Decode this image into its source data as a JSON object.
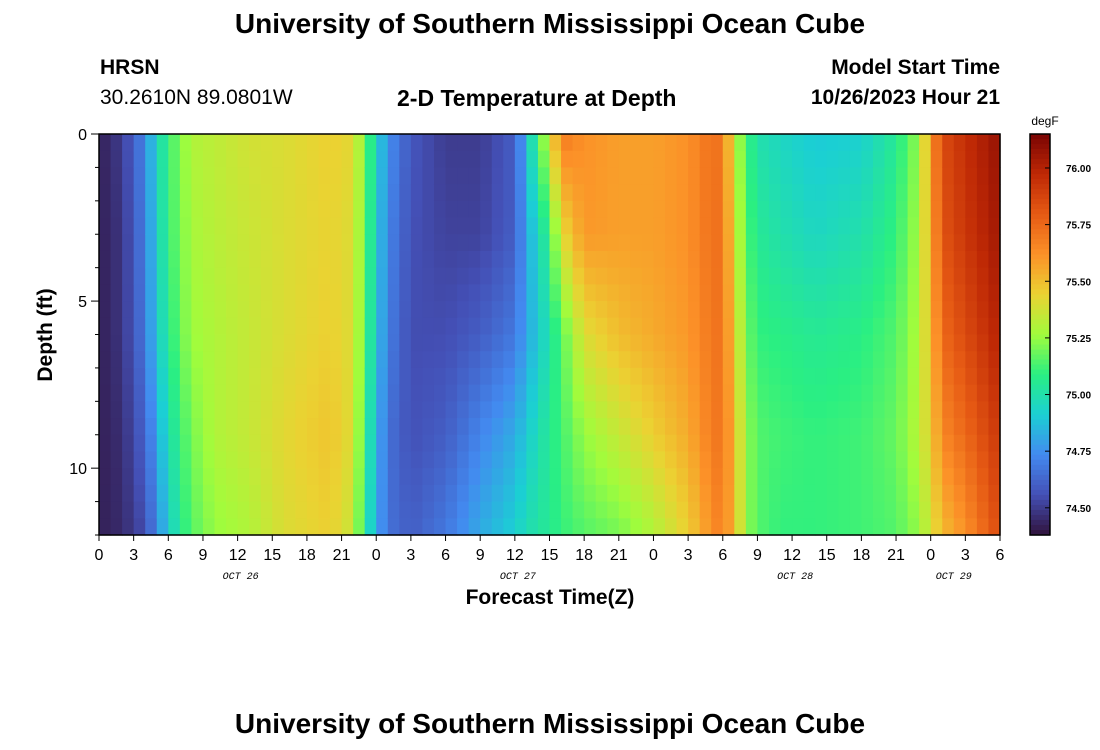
{
  "page": {
    "title": "University of Southern Mississippi Ocean Cube",
    "title_repeat": "University of Southern Mississippi Ocean Cube",
    "station_name": "HRSN",
    "station_coords": "30.2610N  89.0801W",
    "subtitle": "2-D Temperature at Depth",
    "model_start_label": "Model Start Time",
    "model_start_value": "10/26/2023 Hour 21"
  },
  "chart_data": {
    "type": "heatmap",
    "title": "2-D Temperature at Depth",
    "xlabel": "Forecast Time(Z)",
    "ylabel": "Depth (ft)",
    "x_range_hours": [
      0,
      78
    ],
    "y_range_ft": [
      0,
      12
    ],
    "y_ticks": [
      "0",
      "5",
      "10"
    ],
    "x_ticks": [
      "0",
      "3",
      "6",
      "9",
      "12",
      "15",
      "18",
      "21",
      "0",
      "3",
      "6",
      "9",
      "12",
      "15",
      "18",
      "21",
      "0",
      "3",
      "6",
      "9",
      "12",
      "15",
      "18",
      "21",
      "0",
      "3",
      "6"
    ],
    "date_labels": [
      "OCT 26",
      "OCT 27",
      "OCT 28",
      "OCT 29"
    ],
    "colorbar": {
      "unit": "degF",
      "min": 74.38,
      "max": 76.15,
      "ticks": [
        "74.50",
        "74.75",
        "75.00",
        "75.25",
        "75.50",
        "75.75",
        "76.00"
      ]
    },
    "profiles": {
      "note_depths_ft": [
        0,
        3,
        6,
        9,
        12
      ],
      "hours": [
        0,
        2,
        4,
        5,
        6,
        7,
        8,
        10,
        13,
        16,
        20,
        22,
        23,
        24,
        25,
        27,
        30,
        33,
        36,
        37,
        38,
        39,
        40,
        42,
        45,
        48,
        51,
        53,
        54,
        55,
        56,
        57,
        59,
        62,
        66,
        69,
        71,
        72,
        73,
        75,
        78
      ],
      "rows": [
        [
          74.42,
          74.5,
          74.72,
          74.95,
          75.1,
          75.22,
          75.3,
          75.33,
          75.38,
          75.4,
          75.45,
          75.42,
          75.2,
          74.95,
          74.75,
          74.58,
          74.5,
          74.5,
          74.6,
          74.85,
          75.15,
          75.35,
          75.7,
          75.62,
          75.58,
          75.58,
          75.62,
          75.72,
          75.7,
          75.35,
          75.12,
          75.0,
          74.95,
          74.9,
          74.92,
          75.05,
          75.25,
          75.6,
          75.85,
          75.95,
          76.08
        ],
        [
          74.42,
          74.48,
          74.7,
          74.92,
          75.1,
          75.2,
          75.28,
          75.32,
          75.36,
          75.4,
          75.44,
          75.4,
          75.18,
          74.92,
          74.72,
          74.56,
          74.52,
          74.52,
          74.6,
          74.8,
          74.95,
          75.1,
          75.4,
          75.6,
          75.58,
          75.58,
          75.62,
          75.72,
          75.72,
          75.4,
          75.15,
          75.05,
          75.0,
          74.95,
          75.0,
          75.1,
          75.28,
          75.55,
          75.82,
          75.92,
          76.05
        ],
        [
          74.42,
          74.48,
          74.68,
          74.9,
          75.05,
          75.18,
          75.26,
          75.3,
          75.35,
          75.4,
          75.45,
          75.4,
          75.15,
          74.9,
          74.7,
          74.55,
          74.55,
          74.6,
          74.68,
          74.8,
          74.9,
          75.0,
          75.15,
          75.4,
          75.5,
          75.55,
          75.6,
          75.7,
          75.72,
          75.45,
          75.2,
          75.1,
          75.08,
          75.05,
          75.08,
          75.15,
          75.3,
          75.5,
          75.75,
          75.85,
          76.0
        ],
        [
          74.42,
          74.46,
          74.62,
          74.8,
          74.98,
          75.1,
          75.2,
          75.3,
          75.35,
          75.42,
          75.48,
          75.4,
          75.1,
          74.85,
          74.66,
          74.56,
          74.6,
          74.72,
          74.82,
          74.9,
          74.98,
          75.05,
          75.12,
          75.25,
          75.35,
          75.45,
          75.55,
          75.68,
          75.72,
          75.5,
          75.25,
          75.15,
          75.12,
          75.1,
          75.12,
          75.18,
          75.32,
          75.45,
          75.65,
          75.75,
          75.92
        ],
        [
          74.42,
          74.45,
          74.55,
          74.72,
          74.9,
          75.05,
          75.15,
          75.25,
          75.3,
          75.4,
          75.45,
          75.35,
          75.05,
          74.82,
          74.66,
          74.6,
          74.68,
          74.82,
          74.92,
          74.98,
          75.02,
          75.05,
          75.1,
          75.15,
          75.2,
          75.3,
          75.45,
          75.62,
          75.68,
          75.5,
          75.25,
          75.15,
          75.1,
          75.1,
          75.12,
          75.15,
          75.25,
          75.38,
          75.5,
          75.62,
          75.85
        ]
      ]
    }
  }
}
